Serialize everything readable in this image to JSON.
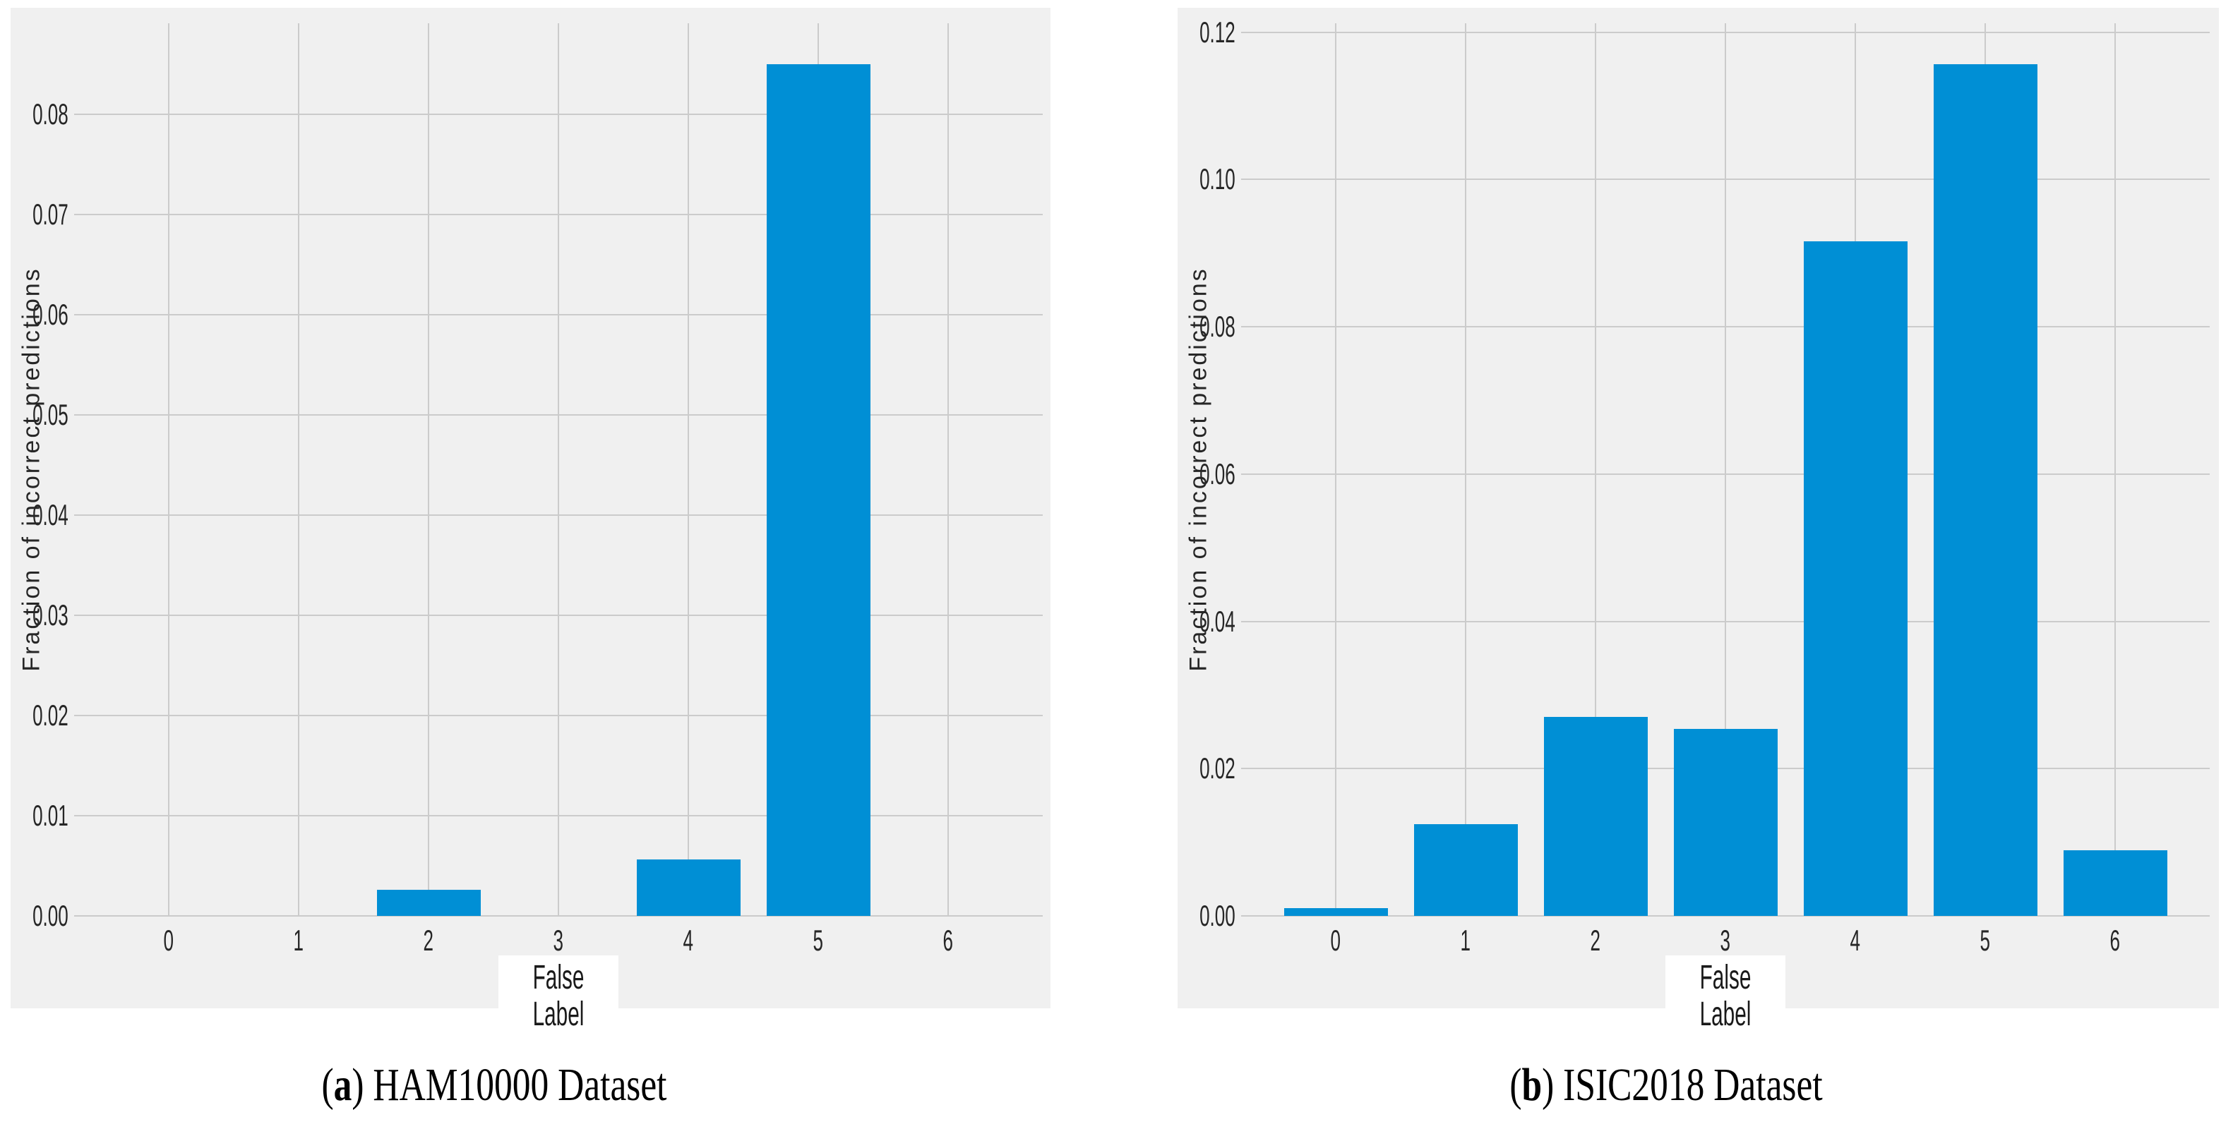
{
  "figure": {
    "ylabel": "Fraction of incorrect predictions",
    "xlabel": "False Label"
  },
  "colors": {
    "page_bg": "#ffffff",
    "panel_bg": "#f0f0f0",
    "grid": "#cbcbcb",
    "bar": "#008fd5",
    "tick_text": "#262626",
    "caption_text": "#000000"
  },
  "chart_data": [
    {
      "type": "bar",
      "panel": "a",
      "caption": "(a) HAM10000 Dataset",
      "caption_parts": {
        "open": "(",
        "letter": "a",
        "rest": ") HAM10000 Dataset"
      },
      "xlabel": "False Label",
      "ylabel": "Fraction of incorrect predictions",
      "categories": [
        "0",
        "1",
        "2",
        "3",
        "4",
        "5",
        "6"
      ],
      "values": [
        0,
        0,
        0.0026,
        0,
        0.0056,
        0.085,
        0
      ],
      "yticks": [
        0,
        0.01,
        0.02,
        0.03,
        0.04,
        0.05,
        0.06,
        0.07,
        0.08
      ],
      "ylim": [
        0,
        0.0891
      ],
      "grid": true,
      "legend": "none",
      "bar_color": "#008fd5"
    },
    {
      "type": "bar",
      "panel": "b",
      "caption": "(b) ISIC2018 Dataset",
      "caption_parts": {
        "open": "(",
        "letter": "b",
        "rest": ") ISIC2018 Dataset"
      },
      "xlabel": "False Label",
      "ylabel": "Fraction of incorrect predictions",
      "categories": [
        "0",
        "1",
        "2",
        "3",
        "4",
        "5",
        "6"
      ],
      "values": [
        0.0011,
        0.0125,
        0.027,
        0.0254,
        0.0916,
        0.1156,
        0.0089
      ],
      "yticks": [
        0,
        0.02,
        0.04,
        0.06,
        0.08,
        0.1,
        0.12
      ],
      "ylim": [
        0,
        0.1212
      ],
      "grid": true,
      "legend": "none",
      "bar_color": "#008fd5"
    }
  ]
}
